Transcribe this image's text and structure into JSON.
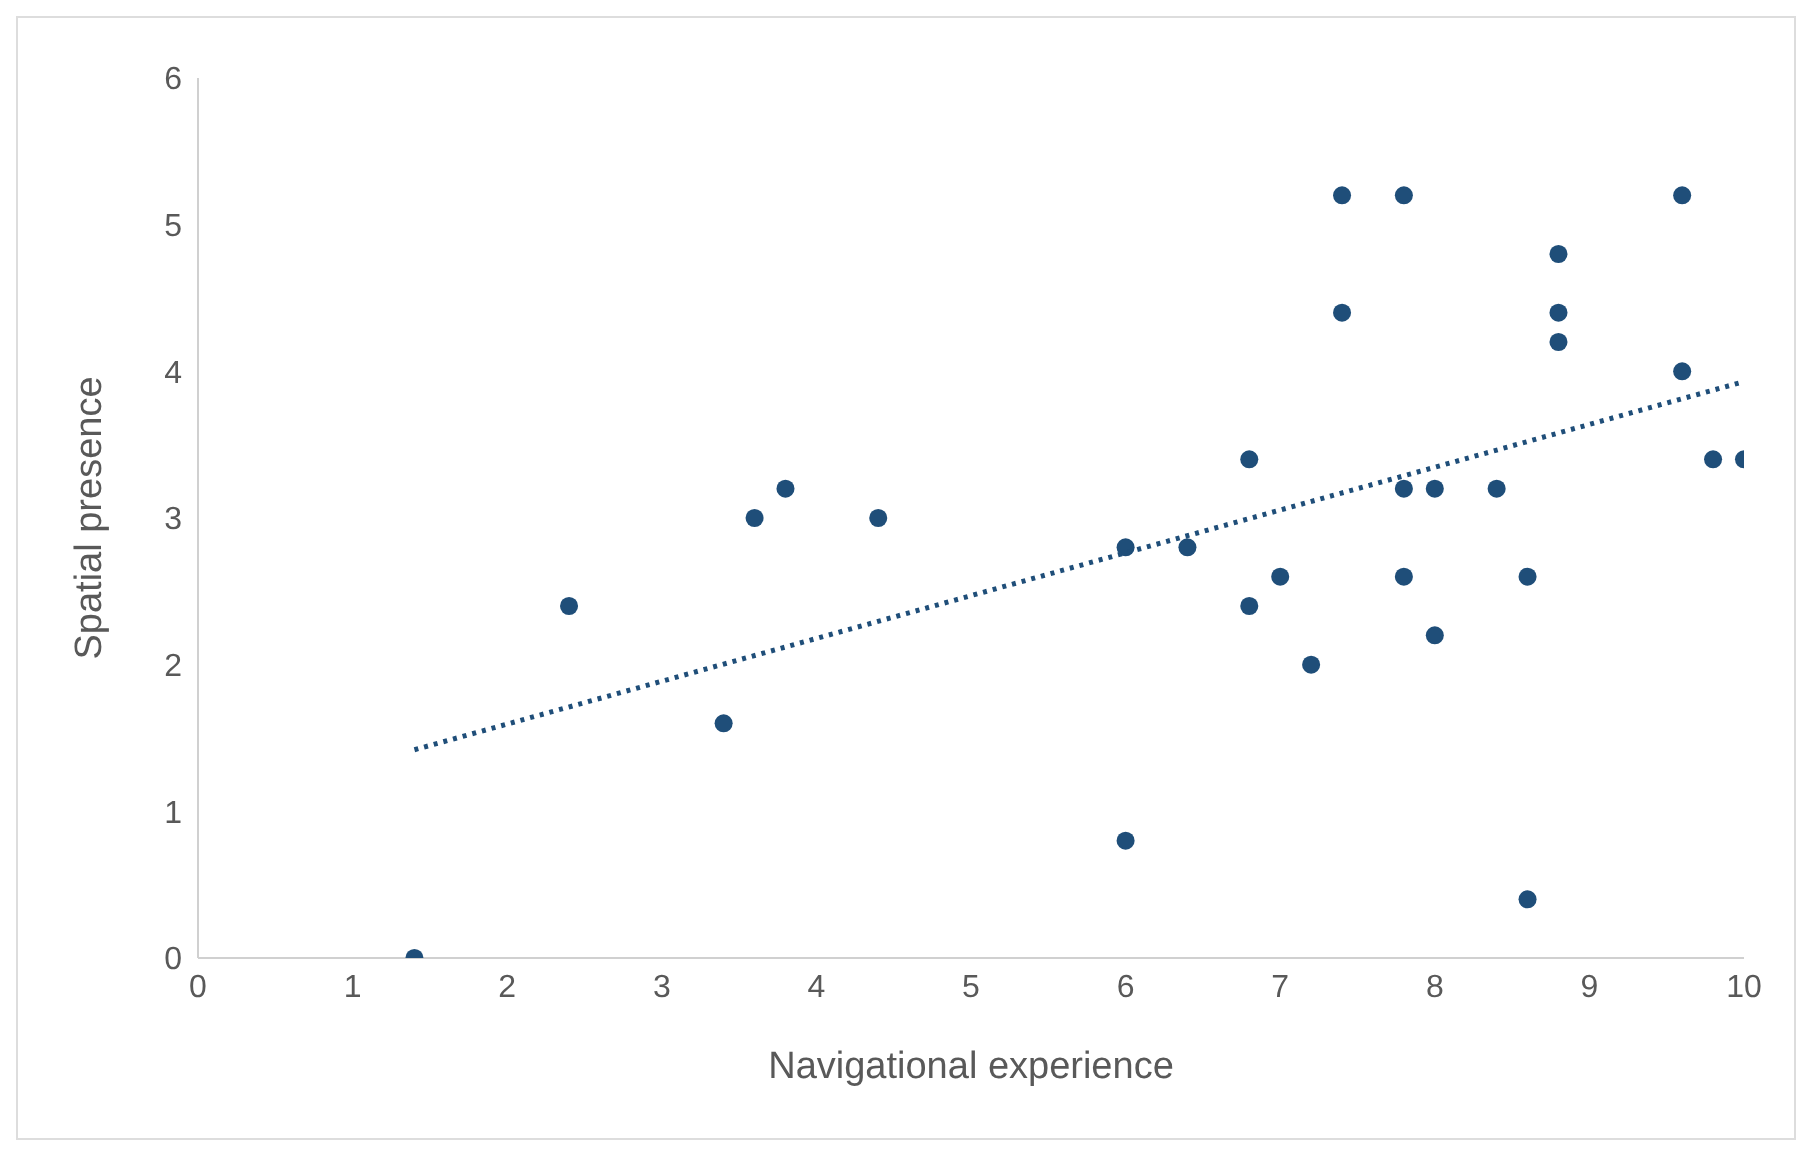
{
  "chart_data": {
    "type": "scatter",
    "xlabel": "Navigational experience",
    "ylabel": "Spatial presence",
    "xlim": [
      0,
      10
    ],
    "ylim": [
      0,
      6
    ],
    "xticks": [
      0,
      1,
      2,
      3,
      4,
      5,
      6,
      7,
      8,
      9,
      10
    ],
    "yticks": [
      0,
      1,
      2,
      3,
      4,
      5,
      6
    ],
    "grid": false,
    "series": [
      {
        "type": "scatter",
        "color": "#1f4e79",
        "marker": "circle",
        "x": [
          1.4,
          2.4,
          3.4,
          3.6,
          3.8,
          4.4,
          6.0,
          6.0,
          6.4,
          6.8,
          6.8,
          7.0,
          7.2,
          7.4,
          7.4,
          7.8,
          7.8,
          7.8,
          8.0,
          8.0,
          8.4,
          8.6,
          8.6,
          8.8,
          8.8,
          8.8,
          9.6,
          9.6,
          9.8,
          10
        ],
        "values": [
          0,
          2.4,
          1.6,
          3.0,
          3.2,
          3.0,
          2.8,
          0.8,
          2.8,
          3.4,
          2.4,
          2.6,
          2.0,
          5.2,
          4.4,
          5.2,
          3.2,
          2.6,
          3.2,
          2.2,
          3.2,
          2.6,
          0.4,
          4.8,
          4.4,
          4.2,
          5.2,
          4.0,
          3.4,
          3.4
        ]
      },
      {
        "type": "line",
        "color": "#1f4e79",
        "marker": "none",
        "line_style": "dotted",
        "x": [
          1.4,
          10
        ],
        "values": [
          1.42,
          3.93
        ]
      }
    ]
  }
}
